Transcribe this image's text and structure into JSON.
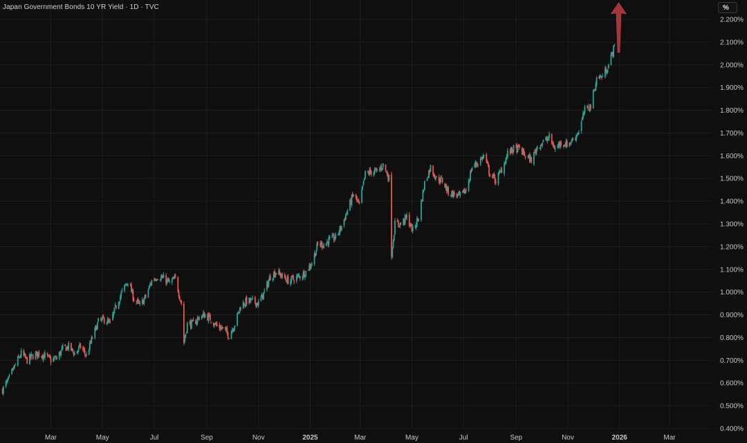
{
  "header": {
    "symbol_title": "Japan Government Bonds 10 YR Yield · 1D · TVC",
    "unit_button": "%"
  },
  "colors": {
    "background": "#0f0f0f",
    "grid": "#1e1e1e",
    "up": "#26a69a",
    "down": "#ef5350",
    "axis_text": "#c8c8c8",
    "arrow": "#a3343a"
  },
  "chart_data": {
    "type": "candlestick",
    "title": "Japan Government Bonds 10 YR Yield · 1D · TVC",
    "y_unit": "%",
    "ylim": [
      0.4,
      2.2
    ],
    "y_ticks": [
      "2.200%",
      "2.100%",
      "2.000%",
      "1.900%",
      "1.800%",
      "1.700%",
      "1.600%",
      "1.500%",
      "1.400%",
      "1.300%",
      "1.200%",
      "1.100%",
      "1.000%",
      "0.900%",
      "0.800%",
      "0.700%",
      "0.600%",
      "0.500%",
      "0.400%"
    ],
    "x_ticks": [
      {
        "label": "Mar",
        "bold": false
      },
      {
        "label": "May",
        "bold": false
      },
      {
        "label": "Jul",
        "bold": false
      },
      {
        "label": "Sep",
        "bold": false
      },
      {
        "label": "Nov",
        "bold": false
      },
      {
        "label": "2025",
        "bold": true
      },
      {
        "label": "Mar",
        "bold": false
      },
      {
        "label": "May",
        "bold": false
      },
      {
        "label": "Jul",
        "bold": false
      },
      {
        "label": "Sep",
        "bold": false
      },
      {
        "label": "Nov",
        "bold": false
      },
      {
        "label": "2026",
        "bold": true
      },
      {
        "label": "Mar",
        "bold": false
      }
    ],
    "x_range": [
      "2024-01-01",
      "2026-04-01"
    ],
    "grid": true,
    "closing_series_approx": [
      [
        "2024-01-04",
        0.57
      ],
      [
        "2024-01-12",
        0.62
      ],
      [
        "2024-01-19",
        0.68
      ],
      [
        "2024-01-26",
        0.73
      ],
      [
        "2024-02-02",
        0.7
      ],
      [
        "2024-02-09",
        0.72
      ],
      [
        "2024-02-16",
        0.73
      ],
      [
        "2024-02-23",
        0.72
      ],
      [
        "2024-03-01",
        0.7
      ],
      [
        "2024-03-08",
        0.71
      ],
      [
        "2024-03-15",
        0.75
      ],
      [
        "2024-03-22",
        0.76
      ],
      [
        "2024-03-29",
        0.73
      ],
      [
        "2024-04-05",
        0.76
      ],
      [
        "2024-04-12",
        0.72
      ],
      [
        "2024-04-19",
        0.8
      ],
      [
        "2024-04-26",
        0.87
      ],
      [
        "2024-05-03",
        0.88
      ],
      [
        "2024-05-10",
        0.86
      ],
      [
        "2024-05-17",
        0.94
      ],
      [
        "2024-05-24",
        1.0
      ],
      [
        "2024-05-31",
        1.05
      ],
      [
        "2024-06-07",
        0.97
      ],
      [
        "2024-06-14",
        0.94
      ],
      [
        "2024-06-21",
        0.98
      ],
      [
        "2024-06-28",
        1.05
      ],
      [
        "2024-07-05",
        1.07
      ],
      [
        "2024-07-12",
        1.06
      ],
      [
        "2024-07-19",
        1.04
      ],
      [
        "2024-07-26",
        1.06
      ],
      [
        "2024-08-02",
        0.95
      ],
      [
        "2024-08-05",
        0.78
      ],
      [
        "2024-08-09",
        0.86
      ],
      [
        "2024-08-16",
        0.86
      ],
      [
        "2024-08-23",
        0.89
      ],
      [
        "2024-08-30",
        0.9
      ],
      [
        "2024-09-06",
        0.88
      ],
      [
        "2024-09-13",
        0.85
      ],
      [
        "2024-09-20",
        0.84
      ],
      [
        "2024-09-27",
        0.81
      ],
      [
        "2024-10-04",
        0.86
      ],
      [
        "2024-10-11",
        0.94
      ],
      [
        "2024-10-18",
        0.96
      ],
      [
        "2024-10-25",
        0.96
      ],
      [
        "2024-11-01",
        0.95
      ],
      [
        "2024-11-08",
        1.0
      ],
      [
        "2024-11-15",
        1.07
      ],
      [
        "2024-11-22",
        1.09
      ],
      [
        "2024-11-29",
        1.07
      ],
      [
        "2024-12-06",
        1.05
      ],
      [
        "2024-12-13",
        1.06
      ],
      [
        "2024-12-20",
        1.07
      ],
      [
        "2024-12-27",
        1.09
      ],
      [
        "2025-01-03",
        1.13
      ],
      [
        "2025-01-10",
        1.21
      ],
      [
        "2025-01-17",
        1.21
      ],
      [
        "2025-01-24",
        1.23
      ],
      [
        "2025-01-31",
        1.24
      ],
      [
        "2025-02-07",
        1.29
      ],
      [
        "2025-02-14",
        1.36
      ],
      [
        "2025-02-21",
        1.43
      ],
      [
        "2025-02-28",
        1.38
      ],
      [
        "2025-03-07",
        1.52
      ],
      [
        "2025-03-14",
        1.53
      ],
      [
        "2025-03-21",
        1.53
      ],
      [
        "2025-03-28",
        1.56
      ],
      [
        "2025-04-04",
        1.5
      ],
      [
        "2025-04-07",
        1.17
      ],
      [
        "2025-04-11",
        1.3
      ],
      [
        "2025-04-18",
        1.3
      ],
      [
        "2025-04-25",
        1.33
      ],
      [
        "2025-05-02",
        1.27
      ],
      [
        "2025-05-09",
        1.33
      ],
      [
        "2025-05-16",
        1.48
      ],
      [
        "2025-05-23",
        1.55
      ],
      [
        "2025-05-30",
        1.5
      ],
      [
        "2025-06-06",
        1.49
      ],
      [
        "2025-06-13",
        1.44
      ],
      [
        "2025-06-20",
        1.43
      ],
      [
        "2025-06-27",
        1.42
      ],
      [
        "2025-07-04",
        1.45
      ],
      [
        "2025-07-11",
        1.55
      ],
      [
        "2025-07-18",
        1.57
      ],
      [
        "2025-07-25",
        1.6
      ],
      [
        "2025-08-01",
        1.52
      ],
      [
        "2025-08-08",
        1.49
      ],
      [
        "2025-08-15",
        1.54
      ],
      [
        "2025-08-22",
        1.61
      ],
      [
        "2025-08-29",
        1.63
      ],
      [
        "2025-09-05",
        1.63
      ],
      [
        "2025-09-12",
        1.6
      ],
      [
        "2025-09-19",
        1.58
      ],
      [
        "2025-09-26",
        1.64
      ],
      [
        "2025-10-03",
        1.66
      ],
      [
        "2025-10-10",
        1.68
      ],
      [
        "2025-10-17",
        1.63
      ],
      [
        "2025-10-24",
        1.66
      ],
      [
        "2025-10-31",
        1.65
      ],
      [
        "2025-11-07",
        1.67
      ],
      [
        "2025-11-14",
        1.71
      ],
      [
        "2025-11-21",
        1.8
      ],
      [
        "2025-11-28",
        1.82
      ],
      [
        "2025-12-05",
        1.94
      ],
      [
        "2025-12-12",
        1.95
      ],
      [
        "2025-12-19",
        2.0
      ],
      [
        "2025-12-26",
        2.08
      ]
    ],
    "annotation": {
      "type": "up-arrow",
      "x": "2025-12-31",
      "y_from": 2.04,
      "y_to": 2.22
    }
  }
}
